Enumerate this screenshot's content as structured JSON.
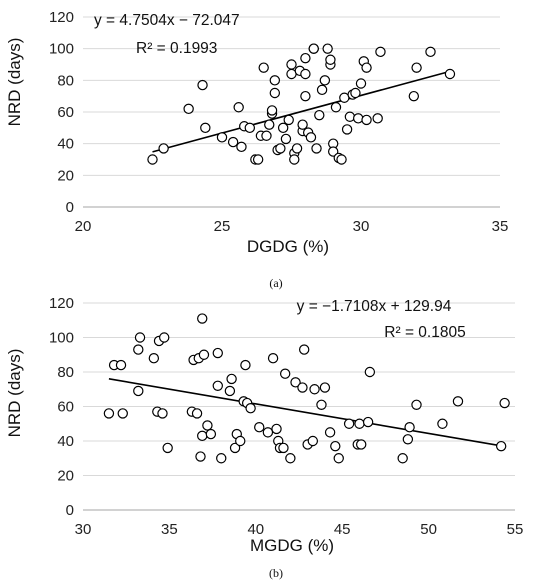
{
  "chart_data": [
    {
      "type": "scatter",
      "xlabel": "DGDG (%)",
      "ylabel": "NRD (days)",
      "xlim": [
        20,
        35
      ],
      "ylim": [
        0,
        120
      ],
      "xticks": [
        "20",
        "25",
        "30",
        "35"
      ],
      "yticks": [
        "0",
        "20",
        "40",
        "60",
        "80",
        "100",
        "120"
      ],
      "grid": "horizontal",
      "trendline": {
        "slope": 4.7504,
        "intercept": -72.047,
        "x_range": [
          22.5,
          33.2
        ]
      },
      "equation": "y = 4.7504x − 72.047",
      "r2": "R² = 0.1993",
      "caption": "(a)",
      "points": [
        [
          22.5,
          30
        ],
        [
          22.9,
          37
        ],
        [
          23.8,
          62
        ],
        [
          24.3,
          77
        ],
        [
          24.4,
          50
        ],
        [
          25.0,
          44
        ],
        [
          25.4,
          41
        ],
        [
          25.6,
          63
        ],
        [
          25.7,
          38
        ],
        [
          25.8,
          51
        ],
        [
          26.0,
          50
        ],
        [
          26.2,
          30
        ],
        [
          26.3,
          30
        ],
        [
          26.4,
          45
        ],
        [
          26.5,
          88
        ],
        [
          26.6,
          45
        ],
        [
          26.7,
          52
        ],
        [
          26.8,
          59
        ],
        [
          26.8,
          61
        ],
        [
          26.9,
          72
        ],
        [
          26.9,
          80
        ],
        [
          27.0,
          36
        ],
        [
          27.1,
          37
        ],
        [
          27.2,
          50
        ],
        [
          27.3,
          43
        ],
        [
          27.4,
          55
        ],
        [
          27.5,
          84
        ],
        [
          27.5,
          90
        ],
        [
          27.6,
          34
        ],
        [
          27.6,
          30
        ],
        [
          27.7,
          37
        ],
        [
          27.8,
          86
        ],
        [
          27.9,
          48
        ],
        [
          27.9,
          52
        ],
        [
          28.0,
          84
        ],
        [
          28.0,
          94
        ],
        [
          28.0,
          70
        ],
        [
          28.1,
          47
        ],
        [
          28.2,
          44
        ],
        [
          28.3,
          100
        ],
        [
          28.3,
          100
        ],
        [
          28.4,
          37
        ],
        [
          28.5,
          58
        ],
        [
          28.6,
          74
        ],
        [
          28.7,
          80
        ],
        [
          28.8,
          100
        ],
        [
          28.9,
          90
        ],
        [
          28.9,
          93
        ],
        [
          29.0,
          40
        ],
        [
          29.0,
          35
        ],
        [
          29.1,
          63
        ],
        [
          29.2,
          31
        ],
        [
          29.3,
          30
        ],
        [
          29.4,
          69
        ],
        [
          29.5,
          49
        ],
        [
          29.6,
          57
        ],
        [
          29.7,
          71
        ],
        [
          29.8,
          72
        ],
        [
          29.9,
          56
        ],
        [
          30.0,
          78
        ],
        [
          30.1,
          92
        ],
        [
          30.2,
          88
        ],
        [
          30.2,
          55
        ],
        [
          30.6,
          56
        ],
        [
          30.7,
          98
        ],
        [
          31.9,
          70
        ],
        [
          32.0,
          88
        ],
        [
          32.5,
          98
        ],
        [
          33.2,
          84
        ]
      ]
    },
    {
      "type": "scatter",
      "xlabel": "MGDG (%)",
      "ylabel": "NRD (days)",
      "xlim": [
        30,
        55
      ],
      "ylim": [
        0,
        120
      ],
      "xticks": [
        "30",
        "35",
        "40",
        "45",
        "50",
        "55"
      ],
      "yticks": [
        "0",
        "20",
        "40",
        "60",
        "80",
        "100",
        "120"
      ],
      "grid": "horizontal",
      "trendline": {
        "slope": -1.7108,
        "intercept": 129.94,
        "x_range": [
          31.5,
          54.2
        ]
      },
      "equation": "y = −1.7108x + 129.94",
      "r2": "R² = 0.1805",
      "caption": "(b)",
      "points": [
        [
          31.5,
          56
        ],
        [
          31.8,
          84
        ],
        [
          32.2,
          84
        ],
        [
          32.3,
          56
        ],
        [
          33.2,
          69
        ],
        [
          33.2,
          93
        ],
        [
          33.3,
          100
        ],
        [
          34.1,
          88
        ],
        [
          34.3,
          57
        ],
        [
          34.4,
          98
        ],
        [
          34.6,
          56
        ],
        [
          34.7,
          100
        ],
        [
          34.9,
          36
        ],
        [
          36.3,
          57
        ],
        [
          36.4,
          87
        ],
        [
          36.6,
          56
        ],
        [
          36.7,
          88
        ],
        [
          36.8,
          31
        ],
        [
          36.9,
          111
        ],
        [
          36.9,
          43
        ],
        [
          37.0,
          90
        ],
        [
          37.2,
          49
        ],
        [
          37.4,
          44
        ],
        [
          37.8,
          72
        ],
        [
          37.8,
          91
        ],
        [
          38.0,
          30
        ],
        [
          38.5,
          69
        ],
        [
          38.6,
          76
        ],
        [
          38.8,
          36
        ],
        [
          38.9,
          44
        ],
        [
          39.1,
          40
        ],
        [
          39.3,
          63
        ],
        [
          39.4,
          84
        ],
        [
          39.5,
          62
        ],
        [
          39.7,
          59
        ],
        [
          40.2,
          48
        ],
        [
          40.7,
          45
        ],
        [
          41.0,
          88
        ],
        [
          41.2,
          47
        ],
        [
          41.3,
          40
        ],
        [
          41.4,
          36
        ],
        [
          41.6,
          36
        ],
        [
          41.7,
          79
        ],
        [
          42.0,
          30
        ],
        [
          42.3,
          74
        ],
        [
          42.7,
          71
        ],
        [
          42.8,
          93
        ],
        [
          43.0,
          38
        ],
        [
          43.3,
          40
        ],
        [
          43.4,
          70
        ],
        [
          43.8,
          61
        ],
        [
          44.0,
          71
        ],
        [
          44.3,
          45
        ],
        [
          44.6,
          37
        ],
        [
          44.8,
          30
        ],
        [
          45.4,
          50
        ],
        [
          45.9,
          38
        ],
        [
          46.0,
          50
        ],
        [
          46.1,
          38
        ],
        [
          46.5,
          51
        ],
        [
          46.6,
          80
        ],
        [
          48.5,
          30
        ],
        [
          48.8,
          41
        ],
        [
          48.9,
          48
        ],
        [
          49.3,
          61
        ],
        [
          50.8,
          50
        ],
        [
          51.7,
          63
        ],
        [
          54.2,
          37
        ],
        [
          54.4,
          62
        ]
      ]
    }
  ]
}
